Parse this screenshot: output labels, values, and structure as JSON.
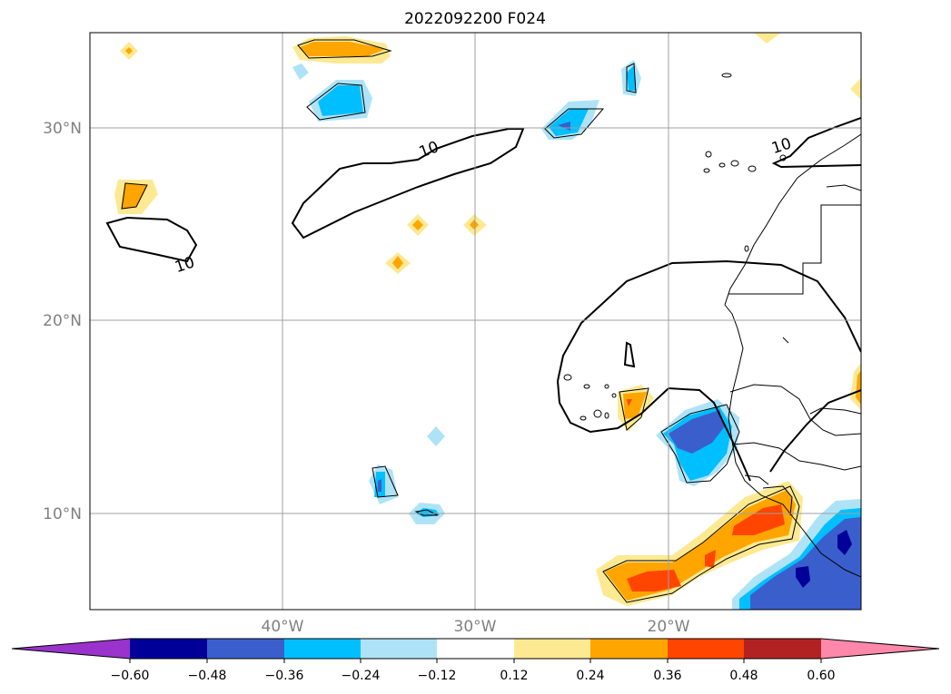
{
  "title": "2022092200 F024",
  "map": {
    "lat_labels": [
      "30°N",
      "20°N",
      "10°N"
    ],
    "lon_labels": [
      "40°W",
      "30°W",
      "20°W"
    ],
    "contour_label": "10",
    "lon_range": [
      -50,
      -10
    ],
    "lat_range": [
      5,
      35
    ],
    "gridlines": true,
    "coastline_color": "#000000"
  },
  "colorbar": {
    "ticks": [
      "−0.60",
      "−0.48",
      "−0.36",
      "−0.24",
      "−0.12",
      "0.12",
      "0.24",
      "0.36",
      "0.48",
      "0.60"
    ],
    "colors": [
      "#9933cc",
      "#000099",
      "#3a5fcd",
      "#00bfff",
      "#aee3f7",
      "#ffffff",
      "#fde992",
      "#ffa500",
      "#ff4500",
      "#b22222",
      "#ff88aa"
    ]
  }
}
